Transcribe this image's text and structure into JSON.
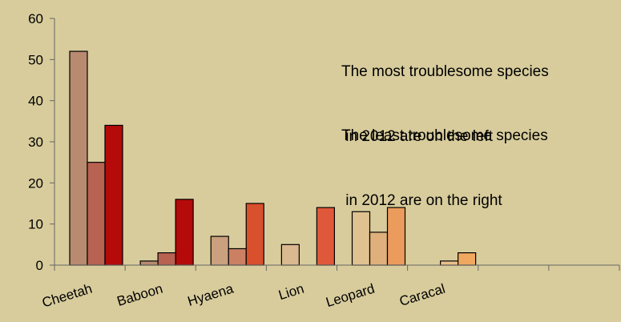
{
  "chart_data": {
    "type": "bar",
    "title": "",
    "xlabel": "",
    "ylabel": "",
    "ylim": [
      0,
      60
    ],
    "yticks": [
      0,
      10,
      20,
      30,
      40,
      50,
      60
    ],
    "grid": false,
    "legend": "none",
    "categories": [
      "Cheetah",
      "Baboon",
      "Hyaena",
      "Lion",
      "Leopard",
      "Caracal",
      "",
      ""
    ],
    "series_count": 3,
    "groups": [
      {
        "category": "Cheetah",
        "values": [
          52,
          25,
          34
        ],
        "colors": [
          "#b88a70",
          "#b86252",
          "#b40a0a"
        ]
      },
      {
        "category": "Baboon",
        "values": [
          1,
          3,
          16
        ],
        "colors": [
          "#b88a70",
          "#b86252",
          "#b40a0a"
        ]
      },
      {
        "category": "Hyaena",
        "values": [
          7,
          4,
          15
        ],
        "colors": [
          "#caa07e",
          "#cb8064",
          "#d9502c"
        ]
      },
      {
        "category": "Lion",
        "values": [
          5,
          null,
          14
        ],
        "colors": [
          "#dab890",
          "#d59070",
          "#e0583a"
        ]
      },
      {
        "category": "Leopard",
        "values": [
          13,
          8,
          14
        ],
        "colors": [
          "#e0c290",
          "#e0b07c",
          "#eb9c5c"
        ]
      },
      {
        "category": "Caracal",
        "values": [
          null,
          1,
          3
        ],
        "colors": [
          "#e8c894",
          "#e8c08a",
          "#f0a860"
        ]
      },
      {
        "category": "",
        "values": [
          null,
          null,
          null
        ],
        "colors": [
          "#000000",
          "#000000",
          "#000000"
        ]
      },
      {
        "category": "",
        "values": [
          null,
          null,
          null
        ],
        "colors": [
          "#000000",
          "#000000",
          "#000000"
        ]
      }
    ],
    "annotations": [
      {
        "lines": [
          "The most troublesome species",
          " in 2012 are on the left"
        ]
      },
      {
        "lines": [
          "The least troublesome species",
          " in 2012 are on the right"
        ]
      }
    ]
  }
}
